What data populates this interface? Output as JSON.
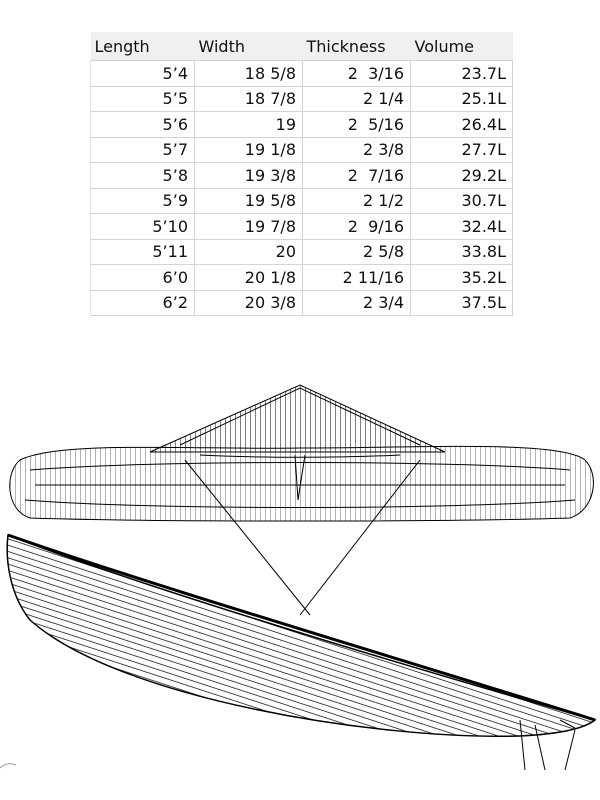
{
  "table": {
    "header": [
      "Length",
      "Width",
      "Thickness",
      "Volume"
    ],
    "rows": [
      [
        "5’4",
        "18 5/8",
        "2  3/16",
        "23.7L"
      ],
      [
        "5’5",
        "18 7/8",
        "2 1/4",
        "25.1L"
      ],
      [
        "5’6",
        "19",
        "2  5/16",
        "26.4L"
      ],
      [
        "5’7",
        "19 1/8",
        "2 3/8",
        "27.7L"
      ],
      [
        "5’8",
        "19 3/8",
        "2  7/16",
        "29.2L"
      ],
      [
        "5’9",
        "19 5/8",
        "2 1/2",
        "30.7L"
      ],
      [
        "5’10",
        "19 7/8",
        "2  9/16",
        "32.4L"
      ],
      [
        "5’11",
        "20",
        "2 5/8",
        "33.8L"
      ],
      [
        "6’0",
        "20 1/8",
        "2 11/16",
        "35.2L"
      ],
      [
        "6’2",
        "20 3/8",
        "2 3/4",
        "37.5L"
      ]
    ]
  }
}
